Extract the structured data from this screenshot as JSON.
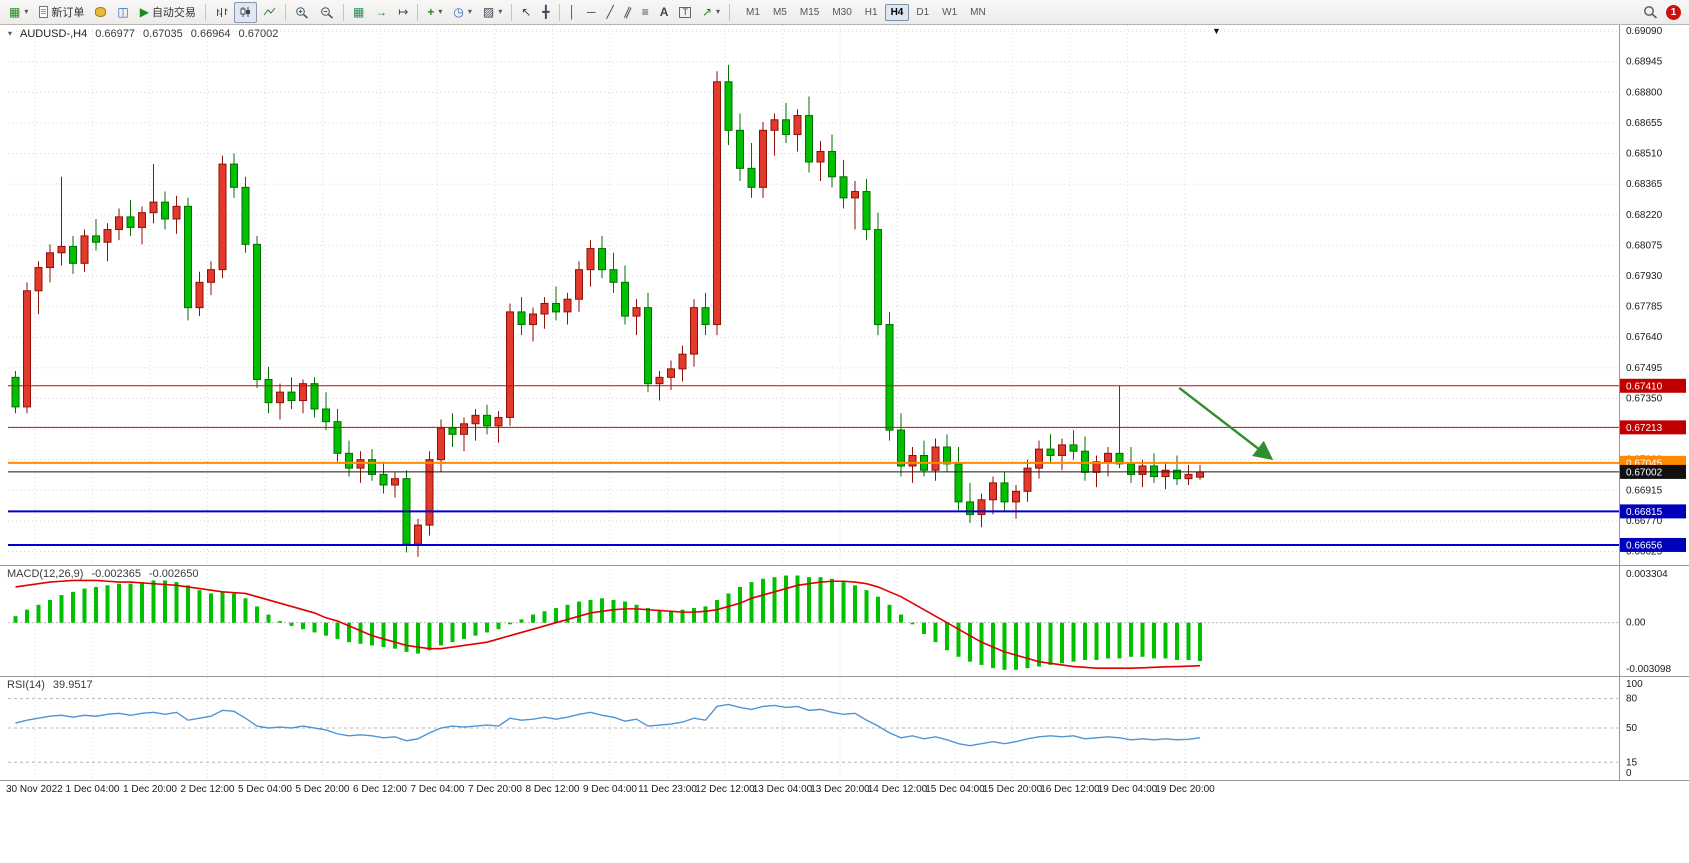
{
  "toolbar": {
    "new_order_label": "新订单",
    "autotrading_label": "自动交易",
    "timeframes": [
      "M1",
      "M5",
      "M15",
      "M30",
      "H1",
      "H4",
      "D1",
      "W1",
      "MN"
    ],
    "active_timeframe": "H4",
    "notification_count": "1",
    "icons": {
      "new_chart": "▦",
      "profiles": "◫",
      "autotrading_play": "▶",
      "tile_windows": "▦",
      "auto_scroll": "→",
      "chart_shift": "↦",
      "indicators_add": "+",
      "periods_clock": "◷",
      "templates": "▨",
      "cursor": "↖",
      "crosshair": "╋",
      "vertical_line": "│",
      "horizontal_line": "─",
      "trend_line": "╱",
      "channel": "∥",
      "fibonacci": "≡",
      "text": "A",
      "text_label": "T",
      "arrows": "↗",
      "dropdown_caret": "▾"
    }
  },
  "chart_header": {
    "collapse_caret": "▾",
    "symbol_period": "AUDUSD-,H4",
    "open": "0.66977",
    "high": "0.67035",
    "low": "0.66964",
    "close": "0.67002",
    "shift_marker": "▼"
  },
  "chart_data": {
    "type": "candlestick",
    "symbol": "AUDUSD-",
    "timeframe": "H4",
    "colors": {
      "up": "#e23b2e",
      "up_border": "#8f1007",
      "down": "#00c000",
      "down_border": "#007000",
      "macd_histogram": "#00c000",
      "macd_signal": "#e00000",
      "rsi_line": "#4f94d4",
      "grid": "#d8d8d8",
      "arrow": "#2f8f2f"
    },
    "price_axis": {
      "min": 0.6658,
      "max": 0.691,
      "ticks": [
        "0.69090",
        "0.68945",
        "0.68800",
        "0.68655",
        "0.68510",
        "0.68365",
        "0.68220",
        "0.68075",
        "0.67930",
        "0.67785",
        "0.67640",
        "0.67495",
        "0.67350",
        "0.67205",
        "0.67060",
        "0.66915",
        "0.66770",
        "0.66625"
      ]
    },
    "time_labels": [
      "30 Nov 2022",
      "1 Dec 04:00",
      "1 Dec 20:00",
      "2 Dec 12:00",
      "5 Dec 04:00",
      "5 Dec 20:00",
      "6 Dec 12:00",
      "7 Dec 04:00",
      "7 Dec 20:00",
      "8 Dec 12:00",
      "9 Dec 04:00",
      "11 Dec 23:00",
      "12 Dec 12:00",
      "13 Dec 04:00",
      "13 Dec 20:00",
      "14 Dec 12:00",
      "15 Dec 04:00",
      "15 Dec 20:00",
      "16 Dec 12:00",
      "19 Dec 04:00",
      "19 Dec 20:00"
    ],
    "candles": [
      [
        0.6745,
        0.6748,
        0.6728,
        0.6731
      ],
      [
        0.6731,
        0.679,
        0.6728,
        0.6786
      ],
      [
        0.6786,
        0.68,
        0.6775,
        0.6797
      ],
      [
        0.6797,
        0.6808,
        0.679,
        0.6804
      ],
      [
        0.6804,
        0.684,
        0.6798,
        0.6807
      ],
      [
        0.6807,
        0.6812,
        0.6794,
        0.6799
      ],
      [
        0.6799,
        0.6815,
        0.6795,
        0.6812
      ],
      [
        0.6812,
        0.682,
        0.6805,
        0.6809
      ],
      [
        0.6809,
        0.6818,
        0.68,
        0.6815
      ],
      [
        0.6815,
        0.6825,
        0.681,
        0.6821
      ],
      [
        0.6821,
        0.6829,
        0.6812,
        0.6816
      ],
      [
        0.6816,
        0.6826,
        0.6808,
        0.6823
      ],
      [
        0.6823,
        0.6846,
        0.6818,
        0.6828
      ],
      [
        0.6828,
        0.6833,
        0.6815,
        0.682
      ],
      [
        0.682,
        0.6831,
        0.6813,
        0.6826
      ],
      [
        0.6826,
        0.683,
        0.6772,
        0.6778
      ],
      [
        0.6778,
        0.6795,
        0.6774,
        0.679
      ],
      [
        0.679,
        0.68,
        0.6784,
        0.6796
      ],
      [
        0.6796,
        0.685,
        0.6792,
        0.6846
      ],
      [
        0.6846,
        0.6851,
        0.683,
        0.6835
      ],
      [
        0.6835,
        0.684,
        0.6804,
        0.6808
      ],
      [
        0.6808,
        0.6812,
        0.674,
        0.6744
      ],
      [
        0.6744,
        0.675,
        0.6728,
        0.6733
      ],
      [
        0.6733,
        0.6742,
        0.6725,
        0.6738
      ],
      [
        0.6738,
        0.6745,
        0.673,
        0.6734
      ],
      [
        0.6734,
        0.6744,
        0.6728,
        0.6742
      ],
      [
        0.6742,
        0.6745,
        0.6726,
        0.673
      ],
      [
        0.673,
        0.6738,
        0.672,
        0.6724
      ],
      [
        0.6724,
        0.673,
        0.6705,
        0.6709
      ],
      [
        0.6709,
        0.6715,
        0.6698,
        0.6702
      ],
      [
        0.6702,
        0.671,
        0.6695,
        0.6706
      ],
      [
        0.6706,
        0.6711,
        0.6696,
        0.6699
      ],
      [
        0.6699,
        0.6705,
        0.669,
        0.6694
      ],
      [
        0.6694,
        0.67,
        0.6688,
        0.6697
      ],
      [
        0.6697,
        0.6701,
        0.6662,
        0.6666
      ],
      [
        0.6666,
        0.6678,
        0.666,
        0.6675
      ],
      [
        0.6675,
        0.671,
        0.667,
        0.6706
      ],
      [
        0.6706,
        0.6725,
        0.67,
        0.6721
      ],
      [
        0.6721,
        0.6728,
        0.6712,
        0.6718
      ],
      [
        0.6718,
        0.6726,
        0.671,
        0.6723
      ],
      [
        0.6723,
        0.673,
        0.6715,
        0.6727
      ],
      [
        0.6727,
        0.6732,
        0.6718,
        0.6722
      ],
      [
        0.6722,
        0.6729,
        0.6714,
        0.6726
      ],
      [
        0.6726,
        0.678,
        0.6722,
        0.6776
      ],
      [
        0.6776,
        0.6783,
        0.6765,
        0.677
      ],
      [
        0.677,
        0.6778,
        0.6762,
        0.6775
      ],
      [
        0.6775,
        0.6783,
        0.6768,
        0.678
      ],
      [
        0.678,
        0.6788,
        0.6772,
        0.6776
      ],
      [
        0.6776,
        0.6785,
        0.677,
        0.6782
      ],
      [
        0.6782,
        0.68,
        0.6776,
        0.6796
      ],
      [
        0.6796,
        0.681,
        0.6788,
        0.6806
      ],
      [
        0.6806,
        0.6812,
        0.6792,
        0.6796
      ],
      [
        0.6796,
        0.6804,
        0.6785,
        0.679
      ],
      [
        0.679,
        0.6798,
        0.677,
        0.6774
      ],
      [
        0.6774,
        0.6782,
        0.6765,
        0.6778
      ],
      [
        0.6778,
        0.6785,
        0.6738,
        0.6742
      ],
      [
        0.6742,
        0.6748,
        0.6734,
        0.6745
      ],
      [
        0.6745,
        0.6753,
        0.6739,
        0.6749
      ],
      [
        0.6749,
        0.676,
        0.6743,
        0.6756
      ],
      [
        0.6756,
        0.6782,
        0.675,
        0.6778
      ],
      [
        0.6778,
        0.6785,
        0.6765,
        0.677
      ],
      [
        0.677,
        0.689,
        0.6765,
        0.6885
      ],
      [
        0.6885,
        0.6893,
        0.6855,
        0.6862
      ],
      [
        0.6862,
        0.687,
        0.6838,
        0.6844
      ],
      [
        0.6844,
        0.6856,
        0.683,
        0.6835
      ],
      [
        0.6835,
        0.6866,
        0.683,
        0.6862
      ],
      [
        0.6862,
        0.687,
        0.685,
        0.6867
      ],
      [
        0.6867,
        0.6875,
        0.6856,
        0.686
      ],
      [
        0.686,
        0.6872,
        0.6852,
        0.6869
      ],
      [
        0.6869,
        0.6878,
        0.6842,
        0.6847
      ],
      [
        0.6847,
        0.6857,
        0.6838,
        0.6852
      ],
      [
        0.6852,
        0.686,
        0.6835,
        0.684
      ],
      [
        0.684,
        0.6848,
        0.6825,
        0.683
      ],
      [
        0.683,
        0.6838,
        0.6815,
        0.6833
      ],
      [
        0.6833,
        0.6839,
        0.681,
        0.6815
      ],
      [
        0.6815,
        0.6823,
        0.6765,
        0.677
      ],
      [
        0.677,
        0.6776,
        0.6715,
        0.672
      ],
      [
        0.672,
        0.6728,
        0.6698,
        0.6703
      ],
      [
        0.6703,
        0.6712,
        0.6695,
        0.6708
      ],
      [
        0.6708,
        0.6715,
        0.6698,
        0.6701
      ],
      [
        0.6701,
        0.6716,
        0.6696,
        0.6712
      ],
      [
        0.6712,
        0.6718,
        0.67,
        0.6704
      ],
      [
        0.6704,
        0.6712,
        0.6682,
        0.6686
      ],
      [
        0.6686,
        0.6695,
        0.6676,
        0.668
      ],
      [
        0.668,
        0.669,
        0.6674,
        0.6687
      ],
      [
        0.6687,
        0.6698,
        0.668,
        0.6695
      ],
      [
        0.6695,
        0.67,
        0.6682,
        0.6686
      ],
      [
        0.6686,
        0.6694,
        0.6678,
        0.6691
      ],
      [
        0.6691,
        0.6706,
        0.6686,
        0.6702
      ],
      [
        0.6702,
        0.6715,
        0.6697,
        0.6711
      ],
      [
        0.6711,
        0.6718,
        0.6704,
        0.6708
      ],
      [
        0.6708,
        0.6716,
        0.6701,
        0.6713
      ],
      [
        0.6713,
        0.672,
        0.6706,
        0.671
      ],
      [
        0.671,
        0.6717,
        0.6696,
        0.67
      ],
      [
        0.67,
        0.6708,
        0.6693,
        0.6705
      ],
      [
        0.6705,
        0.6712,
        0.6698,
        0.6709
      ],
      [
        0.6709,
        0.6741,
        0.6702,
        0.6704
      ],
      [
        0.6704,
        0.6712,
        0.6695,
        0.6699
      ],
      [
        0.6699,
        0.6706,
        0.6693,
        0.6703
      ],
      [
        0.6703,
        0.6709,
        0.6695,
        0.6698
      ],
      [
        0.6698,
        0.6705,
        0.6692,
        0.6701
      ],
      [
        0.6701,
        0.6708,
        0.6694,
        0.6697
      ],
      [
        0.6697,
        0.67035,
        0.6694,
        0.6699
      ],
      [
        0.66977,
        0.67035,
        0.66964,
        0.67002
      ]
    ],
    "levels": [
      {
        "name": "red-resistance-line-1",
        "price": 0.6741,
        "label": "0.67410",
        "color": "#dd0000",
        "badge": "#c00000",
        "width": 1
      },
      {
        "name": "red-resistance-line-2",
        "price": 0.67213,
        "label": "0.67213",
        "color": "#dd0000",
        "badge": "#c00000",
        "width": 1
      },
      {
        "name": "orange-level-line",
        "price": 0.67045,
        "label": "0.67045",
        "color": "#ff8a00",
        "badge": "#ff8a00",
        "width": 2
      },
      {
        "name": "bid-price-line",
        "price": 0.67002,
        "label": "0.67002",
        "color": "#151515",
        "badge": "#111111",
        "width": 1
      },
      {
        "name": "blue-support-line-1",
        "price": 0.66815,
        "label": "0.66815",
        "color": "#0000cc",
        "badge": "#0000bb",
        "width": 2
      },
      {
        "name": "blue-support-line-2",
        "price": 0.66656,
        "label": "0.66656",
        "color": "#0000cc",
        "badge": "#0000bb",
        "width": 2
      }
    ],
    "arrow": {
      "from": {
        "index": 101.5,
        "price": 0.674
      },
      "to": {
        "index": 109.5,
        "price": 0.67065
      },
      "color": "#2f8f2f"
    },
    "macd": {
      "label": "MACD(12,26,9)",
      "value_main": "-0.002365",
      "value_signal": "-0.002650",
      "scale": 0.001,
      "axis": {
        "max": 0.003304,
        "min": -0.003098,
        "tick_labels": [
          "0.003304",
          "0.00",
          "-0.003098"
        ],
        "tick_values": [
          0.003304,
          0,
          -0.003098
        ]
      },
      "histogram": [
        0.4,
        0.8,
        1.1,
        1.4,
        1.7,
        1.9,
        2.1,
        2.2,
        2.3,
        2.4,
        2.4,
        2.5,
        2.6,
        2.6,
        2.5,
        2.3,
        2.0,
        1.8,
        1.9,
        1.8,
        1.5,
        1.0,
        0.5,
        0.1,
        -0.2,
        -0.4,
        -0.6,
        -0.8,
        -1.0,
        -1.2,
        -1.3,
        -1.4,
        -1.5,
        -1.6,
        -1.8,
        -1.9,
        -1.7,
        -1.4,
        -1.2,
        -1.0,
        -0.8,
        -0.6,
        -0.4,
        -0.1,
        0.2,
        0.5,
        0.7,
        0.9,
        1.1,
        1.3,
        1.4,
        1.5,
        1.4,
        1.3,
        1.1,
        0.9,
        0.8,
        0.7,
        0.8,
        0.9,
        1.0,
        1.4,
        1.8,
        2.2,
        2.5,
        2.7,
        2.8,
        2.9,
        2.9,
        2.8,
        2.8,
        2.7,
        2.5,
        2.3,
        2.0,
        1.6,
        1.1,
        0.5,
        -0.1,
        -0.7,
        -1.2,
        -1.7,
        -2.1,
        -2.4,
        -2.6,
        -2.8,
        -2.9,
        -2.9,
        -2.8,
        -2.7,
        -2.6,
        -2.5,
        -2.4,
        -2.3,
        -2.3,
        -2.2,
        -2.2,
        -2.1,
        -2.1,
        -2.2,
        -2.2,
        -2.3,
        -2.3,
        -2.365
      ],
      "signal": [
        2.2,
        2.3,
        2.4,
        2.5,
        2.55,
        2.6,
        2.6,
        2.6,
        2.55,
        2.5,
        2.5,
        2.45,
        2.4,
        2.35,
        2.3,
        2.2,
        2.1,
        2.0,
        1.9,
        1.85,
        1.8,
        1.6,
        1.4,
        1.2,
        1.0,
        0.8,
        0.6,
        0.3,
        0.1,
        -0.2,
        -0.5,
        -0.8,
        -1.0,
        -1.2,
        -1.4,
        -1.5,
        -1.6,
        -1.6,
        -1.5,
        -1.4,
        -1.3,
        -1.2,
        -1.0,
        -0.8,
        -0.6,
        -0.4,
        -0.2,
        0.0,
        0.2,
        0.4,
        0.6,
        0.7,
        0.8,
        0.85,
        0.85,
        0.8,
        0.75,
        0.7,
        0.65,
        0.65,
        0.7,
        0.8,
        1.0,
        1.2,
        1.5,
        1.7,
        1.9,
        2.1,
        2.3,
        2.4,
        2.5,
        2.55,
        2.55,
        2.5,
        2.4,
        2.2,
        1.9,
        1.6,
        1.2,
        0.8,
        0.4,
        0.0,
        -0.4,
        -0.8,
        -1.2,
        -1.5,
        -1.8,
        -2.0,
        -2.2,
        -2.4,
        -2.5,
        -2.6,
        -2.7,
        -2.75,
        -2.8,
        -2.8,
        -2.8,
        -2.8,
        -2.78,
        -2.75,
        -2.72,
        -2.7,
        -2.68,
        -2.65
      ]
    },
    "rsi": {
      "label": "RSI(14)",
      "value": "39.9517",
      "axis": {
        "tick_labels": [
          "100",
          "80",
          "50",
          "15",
          "0"
        ],
        "tick_values": [
          100,
          80,
          50,
          15,
          0
        ],
        "levels": [
          80,
          50,
          15
        ]
      },
      "values": [
        55,
        58,
        60,
        62,
        63,
        61,
        63,
        62,
        64,
        65,
        63,
        65,
        66,
        64,
        66,
        58,
        60,
        62,
        68,
        67,
        60,
        52,
        50,
        51,
        50,
        52,
        50,
        48,
        44,
        42,
        43,
        42,
        40,
        41,
        37,
        39,
        45,
        50,
        52,
        51,
        52,
        53,
        52,
        60,
        58,
        59,
        61,
        59,
        61,
        64,
        66,
        63,
        61,
        57,
        59,
        52,
        53,
        54,
        56,
        60,
        58,
        72,
        74,
        71,
        69,
        72,
        73,
        71,
        72,
        68,
        69,
        66,
        64,
        65,
        58,
        52,
        45,
        40,
        42,
        39,
        41,
        38,
        34,
        32,
        34,
        36,
        34,
        36,
        39,
        41,
        42,
        41,
        42,
        39,
        40,
        41,
        40,
        38,
        39,
        38,
        39,
        38,
        38.5,
        39.95
      ]
    }
  }
}
